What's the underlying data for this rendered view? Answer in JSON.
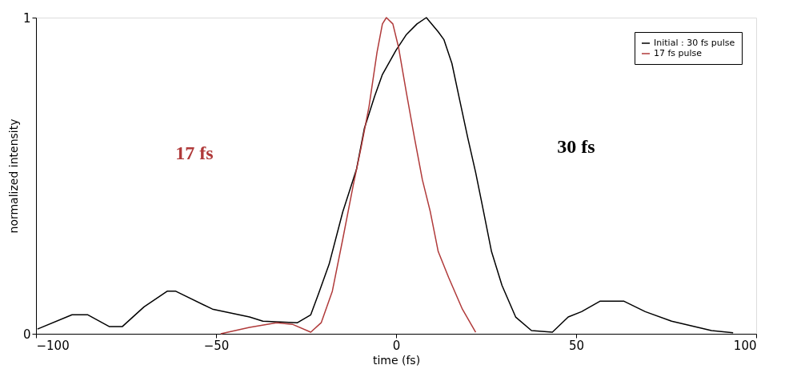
{
  "chart_data": {
    "type": "line",
    "xlabel": "time (fs)",
    "ylabel": "normalized intensity",
    "xlim": [
      -100,
      100
    ],
    "xticks": [
      -100,
      -50,
      0,
      50,
      100
    ],
    "ylim": [
      0,
      1
    ],
    "yticks": [
      0,
      1
    ],
    "grid": false,
    "legend": "top right",
    "marker": "none",
    "line_style": "solid",
    "annotations": [
      "17 fs",
      "30 fs"
    ],
    "series": [
      {
        "name": "Initial : 30 fs pulse",
        "color": "#000000",
        "x": [
          -99.6,
          -90,
          -85.6,
          -79.7,
          -76,
          -70,
          -63.5,
          -61.3,
          -51,
          -40.7,
          -37,
          -27.4,
          -23.7,
          -21.5,
          -18.6,
          -14.8,
          -11,
          -8.8,
          -6,
          -3.8,
          0,
          2.9,
          5.8,
          8.4,
          11.7,
          13.3,
          15.5,
          17.7,
          19.9,
          22.1,
          24.3,
          26.5,
          29.4,
          33.2,
          37.6,
          43.4,
          47.8,
          51.5,
          56.6,
          63.3,
          69.2,
          76.5,
          87.6,
          93.6
        ],
        "values": [
          0.015,
          0.06,
          0.06,
          0.023,
          0.023,
          0.085,
          0.135,
          0.135,
          0.078,
          0.053,
          0.04,
          0.035,
          0.06,
          0.128,
          0.22,
          0.386,
          0.52,
          0.65,
          0.75,
          0.82,
          0.897,
          0.947,
          0.98,
          1.0,
          0.955,
          0.93,
          0.855,
          0.737,
          0.62,
          0.51,
          0.386,
          0.26,
          0.153,
          0.053,
          0.01,
          0.005,
          0.053,
          0.07,
          0.103,
          0.103,
          0.07,
          0.04,
          0.01,
          0.003
        ]
      },
      {
        "name": "17 fs pulse",
        "color": "#b03a3a",
        "x": [
          -48.7,
          -40.7,
          -33.2,
          -28.8,
          -23.7,
          -20.8,
          -17.7,
          -14.8,
          -11.9,
          -9.7,
          -7.5,
          -5.3,
          -3.8,
          -2.7,
          -0.9,
          0.7,
          2.9,
          5.1,
          7.3,
          9.5,
          11.7,
          14.6,
          18.4,
          22.1
        ],
        "values": [
          0,
          0.02,
          0.035,
          0.03,
          0.005,
          0.035,
          0.135,
          0.3,
          0.47,
          0.59,
          0.72,
          0.89,
          0.98,
          1.0,
          0.98,
          0.905,
          0.76,
          0.62,
          0.487,
          0.386,
          0.26,
          0.178,
          0.078,
          0.005
        ]
      }
    ]
  }
}
